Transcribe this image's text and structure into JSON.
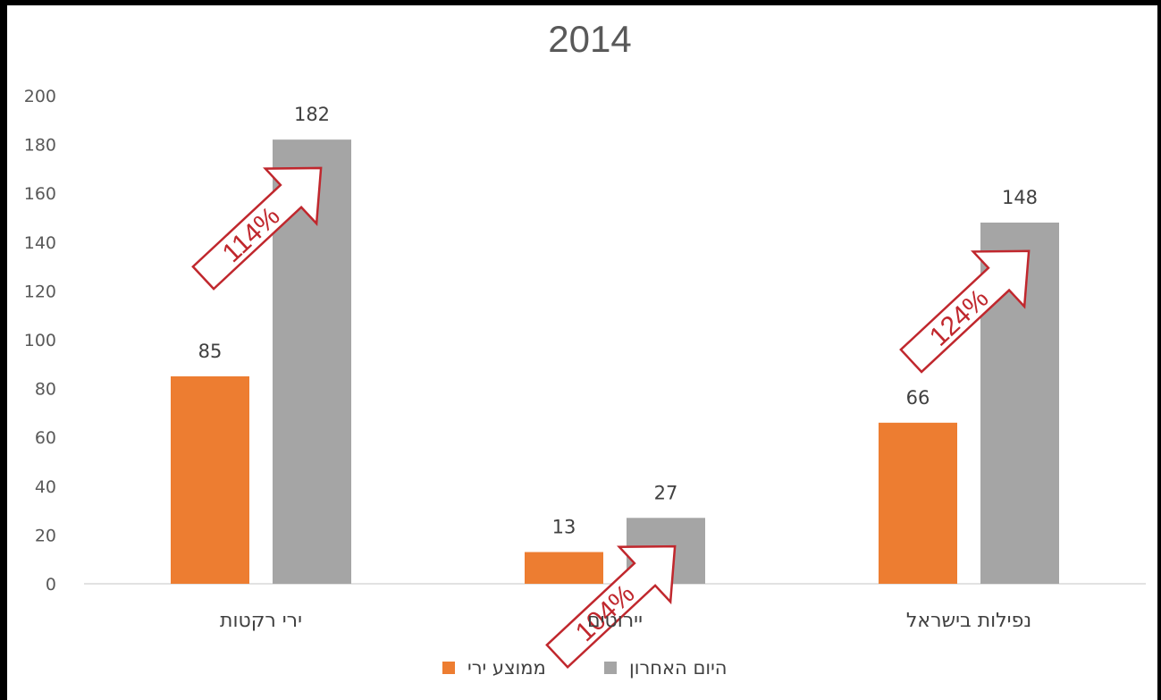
{
  "chart_data": {
    "type": "bar",
    "title": "2014",
    "categories": [
      "ירי רקטות",
      "יירוטים",
      "נפילות בישראל"
    ],
    "series": [
      {
        "name": "ממוצע ירי",
        "values": [
          85,
          13,
          66
        ],
        "color": "#ed7d31"
      },
      {
        "name": "היום  האחרון",
        "values": [
          182,
          27,
          148
        ],
        "color": "#a5a5a5"
      }
    ],
    "ylim": [
      0,
      200
    ],
    "yticks": [
      0,
      20,
      40,
      60,
      80,
      100,
      120,
      140,
      160,
      180,
      200
    ],
    "grid": false,
    "legend_position": "bottom",
    "annotations": [
      {
        "category": "ירי רקטות",
        "text": "114%"
      },
      {
        "category": "יירוטים",
        "text": "104%"
      },
      {
        "category": "נפילות בישראל",
        "text": "124%"
      }
    ],
    "annotation_color": "#c0272d"
  }
}
